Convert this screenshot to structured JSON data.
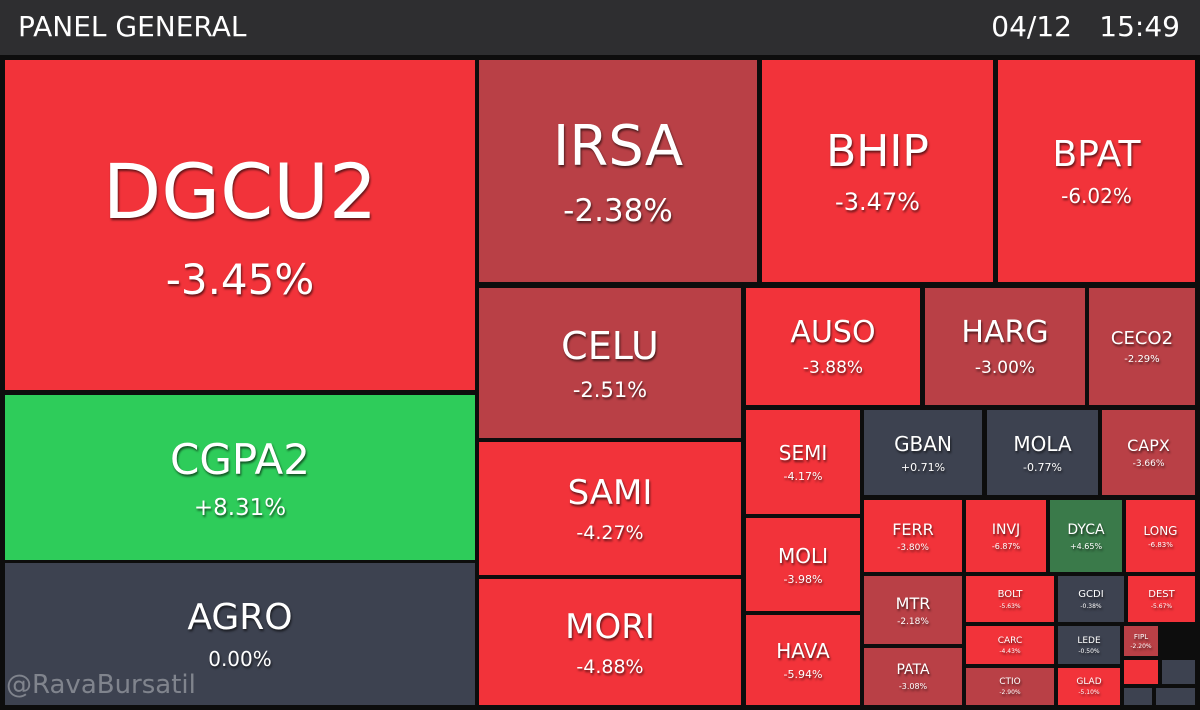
{
  "header": {
    "title": "PANEL GENERAL",
    "date": "04/12",
    "time": "15:49"
  },
  "watermark": "@RavaBursatil",
  "tiles": [
    {
      "symbol": "DGCU2",
      "change": "-3.45%"
    },
    {
      "symbol": "CGPA2",
      "change": "+8.31%"
    },
    {
      "symbol": "AGRO",
      "change": "0.00%"
    },
    {
      "symbol": "IRSA",
      "change": "-2.38%"
    },
    {
      "symbol": "BHIP",
      "change": "-3.47%"
    },
    {
      "symbol": "BPAT",
      "change": "-6.02%"
    },
    {
      "symbol": "CELU",
      "change": "-2.51%"
    },
    {
      "symbol": "AUSO",
      "change": "-3.88%"
    },
    {
      "symbol": "HARG",
      "change": "-3.00%"
    },
    {
      "symbol": "CECO2",
      "change": "-2.29%"
    },
    {
      "symbol": "SAMI",
      "change": "-4.27%"
    },
    {
      "symbol": "MORI",
      "change": "-4.88%"
    },
    {
      "symbol": "SEMI",
      "change": "-4.17%"
    },
    {
      "symbol": "MOLI",
      "change": "-3.98%"
    },
    {
      "symbol": "HAVA",
      "change": "-5.94%"
    },
    {
      "symbol": "GBAN",
      "change": "+0.71%"
    },
    {
      "symbol": "MOLA",
      "change": "-0.77%"
    },
    {
      "symbol": "CAPX",
      "change": "-3.66%"
    },
    {
      "symbol": "FERR",
      "change": "-3.80%"
    },
    {
      "symbol": "INVJ",
      "change": "-6.87%"
    },
    {
      "symbol": "DYCA",
      "change": "+4.65%"
    },
    {
      "symbol": "LONG",
      "change": "-6.83%"
    },
    {
      "symbol": "MTR",
      "change": "-2.18%"
    },
    {
      "symbol": "PATA",
      "change": "-3.08%"
    },
    {
      "symbol": "BOLT",
      "change": "-5.63%"
    },
    {
      "symbol": "GCDI",
      "change": "-0.38%"
    },
    {
      "symbol": "DEST",
      "change": "-5.67%"
    },
    {
      "symbol": "CARC",
      "change": "-4.43%"
    },
    {
      "symbol": "LEDE",
      "change": "-0.50%"
    },
    {
      "symbol": "FIPL",
      "change": "-2.20%"
    },
    {
      "symbol": "CTIO",
      "change": "-2.90%"
    },
    {
      "symbol": "GLAD",
      "change": "-5.10%"
    }
  ]
}
